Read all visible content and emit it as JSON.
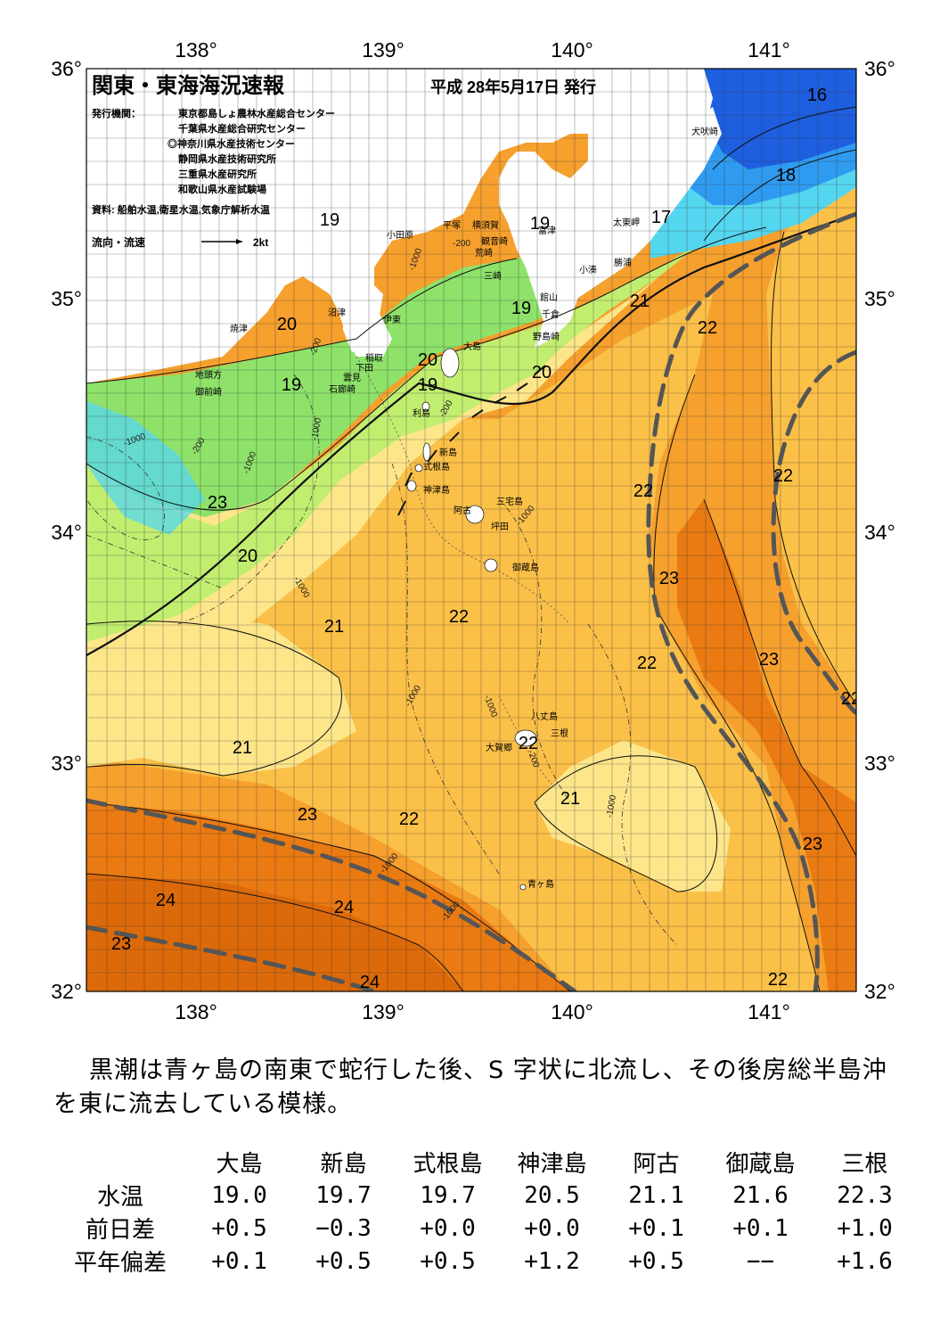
{
  "map": {
    "title": "関東・東海海況速報",
    "date": "平成 28年5月17日 発行",
    "issuer_label": "発行機関：",
    "issuers": [
      "東京都島しょ農林水産総合センター",
      "千葉県水産総合研究センター",
      "◎神奈川県水産技術センター",
      "静岡県水産技術研究所",
      "三重県水産研究所",
      "和歌山県水産試験場"
    ],
    "source": "資料: 船舶水温,衛星水温,気象庁解析水温",
    "flow_legend_label": "流向・流速",
    "flow_legend_scale": "2kt",
    "lon_labels": [
      "138°",
      "139°",
      "140°",
      "141°"
    ],
    "lat_labels": [
      "36°",
      "35°",
      "34°",
      "33°",
      "32°"
    ],
    "place_names": {
      "inubozaki": "犬吠崎",
      "taitozaki": "太東岬",
      "katsuura": "勝浦",
      "kominato": "小湊",
      "futtsu": "富津",
      "yokosuka": "横須賀",
      "kannonzaki": "観音崎",
      "arasaki": "荒崎",
      "misaki": "三崎",
      "hiratsuka": "平塚",
      "odawara": "小田原",
      "tateyama": "館山",
      "chikura": "千倉",
      "nojimazaki": "野島崎",
      "numazu": "沼津",
      "yaizu": "焼津",
      "ito": "伊東",
      "inatori": "稲取",
      "shimoda": "下田",
      "kumomi": "雲見",
      "irozaki": "石廊崎",
      "jitogata": "地頭方",
      "omaezaki": "御前崎",
      "oshima": "大島",
      "toshima": "利島",
      "niijima": "新島",
      "shikinejima": "式根島",
      "kozushima": "神津島",
      "miyakejima": "三宅島",
      "ako": "阿古",
      "tsubota": "坪田",
      "mikurajima": "御蔵島",
      "hachijojima": "八丈島",
      "oogaken": "大賀郷",
      "mitsune": "三根",
      "aogashima": "青ヶ島"
    },
    "isotherm_labels": [
      "16",
      "17",
      "18",
      "19",
      "19",
      "19",
      "19",
      "19",
      "20",
      "20",
      "20",
      "20",
      "21",
      "21",
      "21",
      "21",
      "22",
      "22",
      "22",
      "22",
      "22",
      "22",
      "22",
      "22",
      "23",
      "23",
      "23",
      "23",
      "23",
      "23",
      "24",
      "24",
      "24",
      "22"
    ],
    "depth_labels": [
      "-200",
      "-200",
      "-200",
      "-200",
      "-1000",
      "-1000",
      "-1000",
      "-1000",
      "-1000",
      "-1000",
      "-1000",
      "-1000",
      "-1000",
      "-200",
      "-1000",
      "-1000"
    ],
    "colors": {
      "temp_16": "#1e5fe0",
      "temp_17": "#2f9bf0",
      "temp_18": "#55d6f0",
      "temp_19": "#8ee26a",
      "temp_20": "#c2ee70",
      "temp_21": "#fde68a",
      "temp_22": "#fbc048",
      "temp_23": "#f6a02e",
      "temp_24": "#ea7a12",
      "temp_25": "#dd6a0a",
      "land": "#ffffff",
      "kuroshio_axis": "#555555"
    }
  },
  "summary": "黒潮は青ヶ島の南東で蛇行した後、S 字状に北流し、その後房総半島沖を東に流去している模様。",
  "table": {
    "stations": [
      "大島",
      "新島",
      "式根島",
      "神津島",
      "阿古",
      "御蔵島",
      "三根"
    ],
    "rows": [
      {
        "label": "水温",
        "values": [
          "19.0",
          "19.7",
          "19.7",
          "20.5",
          "21.1",
          "21.6",
          "22.3"
        ]
      },
      {
        "label": "前日差",
        "values": [
          "+0.5",
          "−0.3",
          "+0.0",
          "+0.0",
          "+0.1",
          "+0.1",
          "+1.0"
        ]
      },
      {
        "label": "平年偏差",
        "values": [
          "+0.1",
          "+0.5",
          "+0.5",
          "+1.2",
          "+0.5",
          "−−",
          "+1.6"
        ]
      }
    ]
  }
}
